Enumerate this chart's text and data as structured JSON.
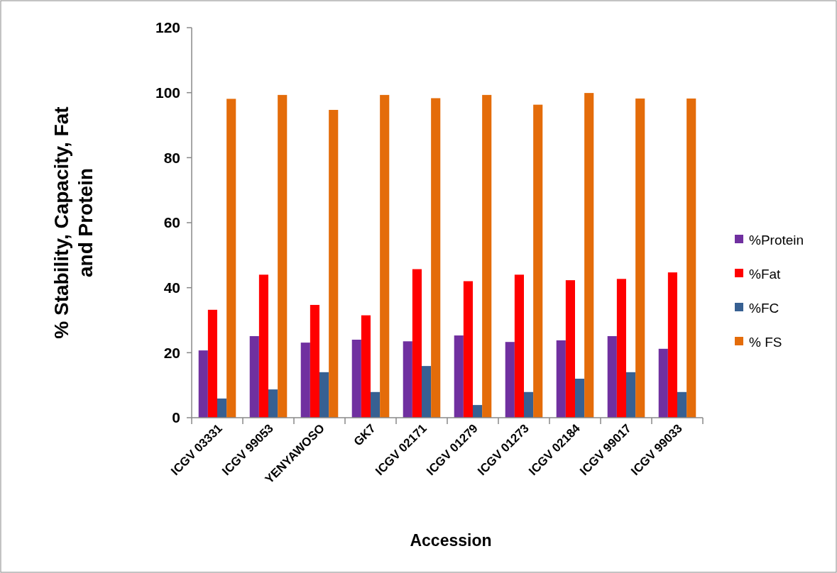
{
  "chart_data": {
    "type": "bar",
    "xlabel": "Accession",
    "ylabel": "% Stability, Capacity, Fat and Protein",
    "categories": [
      "ICGV 03331",
      "ICGV 99053",
      "YENYAWOSO",
      "GK7",
      "ICGV 02171",
      "ICGV 01279",
      "ICGV 01273",
      "ICGV 02184",
      "ICGV 99017",
      "ICGV 99033"
    ],
    "series": [
      {
        "name": "%Protein",
        "color": "#7030a0",
        "values": [
          20.7,
          25.1,
          23.1,
          24.0,
          23.5,
          25.3,
          23.3,
          23.8,
          25.1,
          21.2
        ]
      },
      {
        "name": "%Fat",
        "color": "#ff0000",
        "values": [
          33.2,
          44.0,
          34.7,
          31.5,
          45.7,
          42.0,
          44.0,
          42.3,
          42.7,
          44.7
        ]
      },
      {
        "name": "%FC",
        "color": "#376092",
        "values": [
          5.9,
          8.7,
          14.0,
          7.9,
          15.9,
          3.9,
          7.9,
          12.0,
          14.0,
          7.9
        ]
      },
      {
        "name": "% FS",
        "color": "#e46c0a",
        "values": [
          98.1,
          99.3,
          94.7,
          99.3,
          98.3,
          99.3,
          96.3,
          99.9,
          98.2,
          98.2
        ]
      }
    ],
    "ylim": [
      0,
      120
    ],
    "yticks": [
      0,
      20,
      40,
      60,
      80,
      100,
      120
    ],
    "grid": false,
    "legend": "right"
  }
}
